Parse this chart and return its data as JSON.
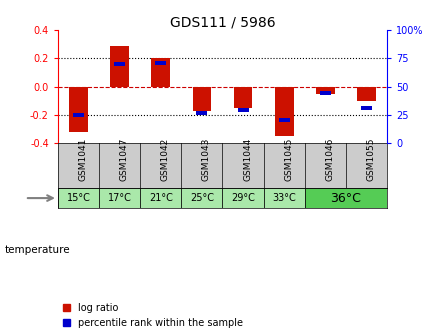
{
  "title": "GDS111 / 5986",
  "samples": [
    "GSM1041",
    "GSM1047",
    "GSM1042",
    "GSM1043",
    "GSM1044",
    "GSM1045",
    "GSM1046",
    "GSM1055"
  ],
  "temp_groups": [
    {
      "label": "15°C",
      "count": 1,
      "color": "#aae8aa"
    },
    {
      "label": "17°C",
      "count": 1,
      "color": "#aae8aa"
    },
    {
      "label": "21°C",
      "count": 1,
      "color": "#aae8aa"
    },
    {
      "label": "25°C",
      "count": 1,
      "color": "#aae8aa"
    },
    {
      "label": "29°C",
      "count": 1,
      "color": "#aae8aa"
    },
    {
      "label": "33°C",
      "count": 1,
      "color": "#aae8aa"
    },
    {
      "label": "36°C",
      "count": 2,
      "color": "#55cc55"
    }
  ],
  "log_ratios": [
    -0.32,
    0.285,
    0.205,
    -0.175,
    -0.155,
    -0.35,
    -0.055,
    -0.1
  ],
  "percentile_ranks": [
    -0.205,
    0.16,
    0.17,
    -0.185,
    -0.165,
    -0.235,
    -0.045,
    -0.155
  ],
  "ylim": [
    -0.4,
    0.4
  ],
  "yticks_left": [
    -0.4,
    -0.2,
    0.0,
    0.2,
    0.4
  ],
  "yticks_right": [
    0,
    25,
    50,
    75,
    100
  ],
  "bar_color": "#cc1100",
  "percentile_color": "#0000cc",
  "zero_line_color": "#cc0000",
  "bg_color": "#ffffff",
  "sample_bg": "#cccccc",
  "legend_label_ratio": "log ratio",
  "legend_label_pct": "percentile rank within the sample",
  "temp_label": "temperature"
}
